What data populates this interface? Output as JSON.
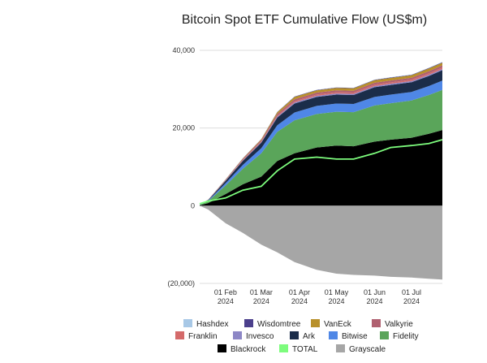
{
  "chart_data": {
    "type": "area",
    "title": "Bitcoin Spot ETF Cumulative Flow (US$m)",
    "xlabel": "",
    "ylabel": "",
    "ylim": [
      -20000,
      40000
    ],
    "y_ticks": [
      40000,
      20000,
      0,
      -20000
    ],
    "y_tick_labels": [
      "40,000",
      "20,000",
      "0",
      "(20,000)"
    ],
    "x_tick_labels": [
      {
        "date": "2024-02-01",
        "line1": "01 Feb",
        "line2": "2024"
      },
      {
        "date": "2024-03-01",
        "line1": "01 Mar",
        "line2": "2024"
      },
      {
        "date": "2024-04-01",
        "line1": "01 Apr",
        "line2": "2024"
      },
      {
        "date": "2024-05-01",
        "line1": "01 May",
        "line2": "2024"
      },
      {
        "date": "2024-06-01",
        "line1": "01 Jun",
        "line2": "2024"
      },
      {
        "date": "2024-07-01",
        "line1": "01 Jul",
        "line2": "2024"
      }
    ],
    "x_range": [
      "2024-01-11",
      "2024-07-26"
    ],
    "grid": "horizontal",
    "legend_position": "bottom",
    "x": [
      "2024-01-11",
      "2024-01-18",
      "2024-02-01",
      "2024-02-15",
      "2024-03-01",
      "2024-03-14",
      "2024-03-28",
      "2024-04-15",
      "2024-05-01",
      "2024-05-15",
      "2024-06-01",
      "2024-06-14",
      "2024-07-01",
      "2024-07-15",
      "2024-07-26"
    ],
    "series": [
      {
        "name": "Blackrock",
        "color": "#000000",
        "values": [
          100,
          700,
          3000,
          5500,
          7500,
          11500,
          13500,
          15000,
          15500,
          15300,
          16500,
          17000,
          17500,
          18500,
          19500
        ]
      },
      {
        "name": "Fidelity",
        "color": "#5aa55a",
        "values": [
          100,
          500,
          2200,
          4000,
          6000,
          7500,
          8500,
          8600,
          8700,
          8800,
          9300,
          9400,
          9600,
          10000,
          10300
        ]
      },
      {
        "name": "Bitwise",
        "color": "#4f87e6",
        "values": [
          30,
          150,
          600,
          1000,
          1300,
          1700,
          2000,
          2100,
          2100,
          2100,
          2200,
          2200,
          2200,
          2300,
          2400
        ]
      },
      {
        "name": "Ark",
        "color": "#1b2d4a",
        "values": [
          30,
          150,
          600,
          1000,
          1400,
          2000,
          2300,
          2300,
          2300,
          2300,
          2500,
          2500,
          2500,
          2600,
          2700
        ]
      },
      {
        "name": "Invesco",
        "color": "#8d87c6",
        "values": [
          0,
          30,
          100,
          150,
          200,
          250,
          300,
          300,
          300,
          300,
          300,
          300,
          300,
          300,
          300
        ]
      },
      {
        "name": "Franklin",
        "color": "#d46a6a",
        "values": [
          0,
          20,
          80,
          150,
          200,
          250,
          300,
          320,
          320,
          320,
          350,
          350,
          350,
          370,
          380
        ]
      },
      {
        "name": "Valkyrie",
        "color": "#b06070",
        "values": [
          0,
          30,
          100,
          200,
          300,
          450,
          500,
          500,
          500,
          500,
          500,
          500,
          500,
          550,
          550
        ]
      },
      {
        "name": "VanEck",
        "color": "#b8902a",
        "values": [
          0,
          20,
          80,
          150,
          200,
          400,
          600,
          600,
          600,
          600,
          650,
          650,
          650,
          700,
          700
        ]
      },
      {
        "name": "Wisdomtree",
        "color": "#4b3f8c",
        "values": [
          0,
          5,
          20,
          40,
          50,
          80,
          100,
          100,
          100,
          100,
          110,
          110,
          110,
          120,
          120
        ]
      },
      {
        "name": "Hashdex",
        "color": "#a8c8e6",
        "values": [
          0,
          2,
          10,
          20,
          30,
          40,
          50,
          50,
          50,
          50,
          60,
          60,
          60,
          70,
          70
        ]
      },
      {
        "name": "Grayscale",
        "color": "#a6a6a6",
        "values": [
          0,
          -1000,
          -4500,
          -7000,
          -10000,
          -12000,
          -14500,
          -16500,
          -17500,
          -17800,
          -18000,
          -18300,
          -18500,
          -18800,
          -19000
        ]
      },
      {
        "name": "TOTAL",
        "color": "#7dfc7d",
        "values": [
          500,
          1200,
          2000,
          4000,
          5000,
          9000,
          12000,
          12500,
          12000,
          12000,
          13500,
          15000,
          15500,
          16000,
          17000
        ]
      }
    ],
    "legend": [
      {
        "name": "Hashdex",
        "color": "#a8c8e6"
      },
      {
        "name": "Wisdomtree",
        "color": "#4b3f8c"
      },
      {
        "name": "VanEck",
        "color": "#b8902a"
      },
      {
        "name": "Valkyrie",
        "color": "#b06070"
      },
      {
        "name": "Franklin",
        "color": "#d46a6a"
      },
      {
        "name": "Invesco",
        "color": "#8d87c6"
      },
      {
        "name": "Ark",
        "color": "#1b2d4a"
      },
      {
        "name": "Bitwise",
        "color": "#4f87e6"
      },
      {
        "name": "Fidelity",
        "color": "#5aa55a"
      },
      {
        "name": "Blackrock",
        "color": "#000000"
      },
      {
        "name": "TOTAL",
        "color": "#7dfc7d"
      },
      {
        "name": "Grayscale",
        "color": "#a6a6a6"
      }
    ]
  }
}
